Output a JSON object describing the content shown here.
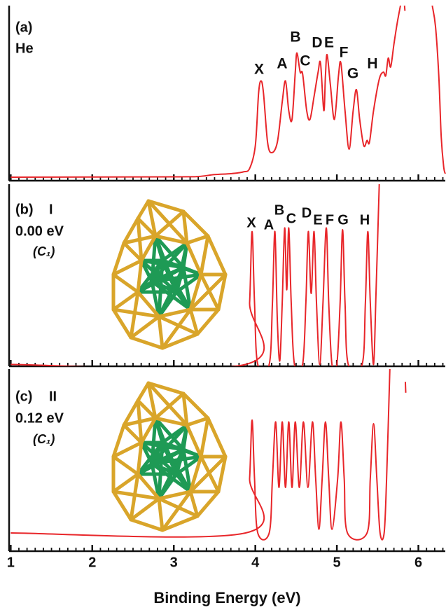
{
  "chart_data": [
    {
      "type": "line",
      "panel_label": "(a)",
      "label": "He",
      "peak_labels": [
        "X",
        "A",
        "B",
        "C",
        "D",
        "E",
        "F",
        "G",
        "H"
      ],
      "x": [
        1.0,
        3.0,
        3.3,
        3.5,
        3.7,
        3.85,
        3.93,
        4.0,
        4.04,
        4.07,
        4.1,
        4.15,
        4.2,
        4.27,
        4.33,
        4.37,
        4.41,
        4.45,
        4.49,
        4.51,
        4.55,
        4.58,
        4.63,
        4.67,
        4.72,
        4.77,
        4.8,
        4.84,
        4.86,
        4.88,
        4.92,
        4.97,
        5.02,
        5.05,
        5.1,
        5.15,
        5.2,
        5.24,
        5.28,
        5.33,
        5.37,
        5.4,
        5.45,
        5.52,
        5.57,
        5.6,
        5.63,
        5.66,
        5.7,
        5.74,
        5.78,
        5.8,
        5.83,
        5.835,
        5.85,
        6.17,
        6.21,
        6.25,
        6.28,
        6.31,
        6.33
      ],
      "series": [
        {
          "color": "#e8262a",
          "values": [
            2,
            2.2,
            2.4,
            3.5,
            4,
            5,
            7,
            20,
            50,
            57,
            50,
            22,
            16,
            22,
            45,
            57,
            40,
            35,
            62,
            73,
            62,
            61,
            40,
            35,
            48,
            62,
            67,
            40,
            60,
            72,
            55,
            35,
            60,
            67,
            40,
            18,
            40,
            52,
            35,
            20,
            23,
            22,
            40,
            58,
            62,
            60,
            70,
            65,
            78,
            90,
            100,
            null,
            100,
            97,
            null,
            100,
            88,
            60,
            25,
            8,
            4
          ]
        }
      ],
      "xlim": [
        0.98,
        6.33
      ],
      "ylim": [
        0,
        100
      ],
      "xticks": [
        1,
        2,
        3,
        4,
        5,
        6
      ],
      "xminor": [
        1.1,
        1.2,
        1.3,
        1.4,
        1.5,
        1.6,
        1.7,
        1.8,
        1.9,
        2.1,
        2.2,
        2.3,
        2.4,
        2.5,
        2.6,
        2.7,
        2.8,
        2.9,
        3.1,
        3.2,
        3.3,
        3.4,
        3.5,
        3.6,
        3.7,
        3.8,
        3.9,
        4.1,
        4.2,
        4.3,
        4.4,
        4.5,
        4.6,
        4.7,
        4.8,
        4.9,
        5.1,
        5.2,
        5.3,
        5.4,
        5.5,
        5.6,
        5.7,
        5.8,
        5.9,
        6.1,
        6.2,
        6.3
      ]
    },
    {
      "type": "line",
      "panel_label": "(b)",
      "label": "I",
      "energy": "0.00 eV",
      "symmetry": "(C₁)",
      "peak_labels": [
        "X",
        "A",
        "B",
        "C",
        "D",
        "E",
        "F",
        "G",
        "H"
      ],
      "x": [
        1.0,
        3.88,
        3.93,
        3.96,
        3.99,
        4.03,
        4.17,
        4.21,
        4.24,
        4.27,
        4.3,
        4.33,
        4.36,
        4.385,
        4.41,
        4.44,
        4.48,
        4.58,
        4.62,
        4.65,
        4.685,
        4.72,
        4.75,
        4.79,
        4.83,
        4.87,
        4.9,
        4.94,
        5.0,
        5.04,
        5.07,
        5.1,
        5.14,
        5.31,
        5.35,
        5.38,
        5.41,
        5.45,
        5.48,
        5.52
      ],
      "series": [
        {
          "color": "#e8262a",
          "values": [
            1,
            1,
            35,
            74,
            35,
            1,
            1,
            35,
            74,
            25,
            3,
            35,
            76,
            42,
            76,
            35,
            1,
            1,
            35,
            74,
            40,
            74,
            35,
            1,
            35,
            76,
            35,
            1,
            1,
            35,
            75,
            35,
            1,
            1,
            35,
            74,
            35,
            1,
            40,
            100
          ]
        }
      ],
      "xlim": [
        0.98,
        6.33
      ],
      "ylim": [
        0,
        100
      ],
      "xticks": [
        1,
        2,
        3,
        4,
        5,
        6
      ],
      "xminor": [
        1.1,
        1.2,
        1.3,
        1.4,
        1.5,
        1.6,
        1.7,
        1.8,
        1.9,
        2.1,
        2.2,
        2.3,
        2.4,
        2.5,
        2.6,
        2.7,
        2.8,
        2.9,
        3.1,
        3.2,
        3.3,
        3.4,
        3.5,
        3.6,
        3.7,
        3.8,
        3.9,
        4.1,
        4.2,
        4.3,
        4.4,
        4.5,
        4.6,
        4.7,
        4.8,
        4.9,
        5.1,
        5.2,
        5.3,
        5.4,
        5.5,
        5.6,
        5.7,
        5.8,
        5.9,
        6.1,
        6.2,
        6.3
      ]
    },
    {
      "type": "line",
      "panel_label": "(c)",
      "label": "II",
      "energy": "0.12 eV",
      "symmetry": "(C₁)",
      "xlabel": "Binding Energy (eV)",
      "x": [
        1.0,
        3.88,
        3.93,
        3.96,
        3.99,
        4.03,
        4.17,
        4.21,
        4.25,
        4.29,
        4.33,
        4.37,
        4.41,
        4.45,
        4.49,
        4.54,
        4.59,
        4.645,
        4.7,
        4.74,
        4.78,
        4.82,
        4.86,
        4.9,
        4.94,
        5.01,
        5.05,
        5.09,
        5.13,
        5.37,
        5.41,
        5.45,
        5.49,
        5.53,
        5.58,
        5.61,
        5.65,
        5.7,
        5.84,
        5.845
      ],
      "series": [
        {
          "color": "#e8262a",
          "values": [
            10,
            10,
            40,
            72,
            40,
            10,
            10,
            40,
            71,
            35,
            71,
            35,
            71,
            35,
            71,
            35,
            71,
            35,
            71,
            40,
            12,
            40,
            71,
            40,
            12,
            40,
            71,
            40,
            10,
            10,
            40,
            70,
            40,
            10,
            10,
            40,
            100,
            null,
            93,
            87
          ]
        }
      ],
      "xlim": [
        0.98,
        6.33
      ],
      "ylim": [
        0,
        100
      ],
      "xticks": [
        1,
        2,
        3,
        4,
        5,
        6
      ],
      "xminor": [
        1.1,
        1.2,
        1.3,
        1.4,
        1.5,
        1.6,
        1.7,
        1.8,
        1.9,
        2.1,
        2.2,
        2.3,
        2.4,
        2.5,
        2.6,
        2.7,
        2.8,
        2.9,
        3.1,
        3.2,
        3.3,
        3.4,
        3.5,
        3.6,
        3.7,
        3.8,
        3.9,
        4.1,
        4.2,
        4.3,
        4.4,
        4.5,
        4.6,
        4.7,
        4.8,
        4.9,
        5.1,
        5.2,
        5.3,
        5.4,
        5.5,
        5.6,
        5.7,
        5.8,
        5.9,
        6.1,
        6.2,
        6.3
      ]
    }
  ]
}
